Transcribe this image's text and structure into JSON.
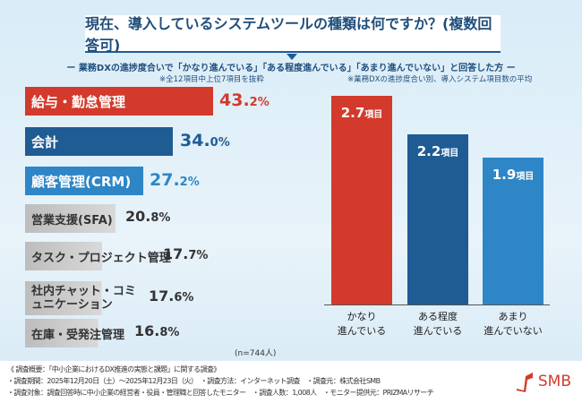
{
  "title": "現在、導入しているシステムツールの種類は何ですか？(複数回答可)",
  "subtitle": "ー 業務DXの進捗度合いで「かなり進んでいる」「ある程度進んでいる」「あまり進んでいない」と回答した方 ー",
  "note_left": "※全12項目中上位7項目を抜粋",
  "note_right": "※業務DXの進捗度合い別、導入システム項目数の平均",
  "n_label": "(n=744人)",
  "chart_data": [
    {
      "type": "bar",
      "orientation": "horizontal",
      "unit": "%",
      "categories": [
        "給与・勤怠管理",
        "会計",
        "顧客管理(CRM)",
        "営業支援(SFA)",
        "タスク・プロジェクト管理",
        "社内チャット・コミュニケーション",
        "在庫・受発注管理"
      ],
      "values": [
        43.2,
        34.0,
        27.2,
        20.8,
        17.7,
        17.6,
        16.8
      ],
      "colors": [
        "#d33a2c",
        "#1f5c94",
        "#2e86c6",
        "#c8c8c8",
        "#c8c8c8",
        "#c8c8c8",
        "#c8c8c8"
      ],
      "value_colors": [
        "#d33a2c",
        "#1f5c94",
        "#2e86c6",
        "#333333",
        "#333333",
        "#333333",
        "#333333"
      ]
    },
    {
      "type": "bar",
      "categories": [
        "かなり\n進んでいる",
        "ある程度\n進んでいる",
        "あまり\n進んでいない"
      ],
      "values": [
        2.7,
        2.2,
        1.9
      ],
      "unit": "項目",
      "colors": [
        "#d33a2c",
        "#1f5c94",
        "#2e86c6"
      ]
    }
  ],
  "footer": {
    "line1": "《 調査概要：「中小企業におけるDX推進の実態と課題」に関する調査》",
    "line2": "・調査期間：2025年12月20日（土）〜2025年12月23日（火）　・調査方法：インターネット調査　・調査元：株式会社SMB",
    "line3": "・調査対象：調査回答時に中小企業の経営者・役員・管理職と回答したモニター　・調査人数：1,008人　・モニター提供元：PRIZMAリサーチ"
  },
  "logo": "SMB"
}
